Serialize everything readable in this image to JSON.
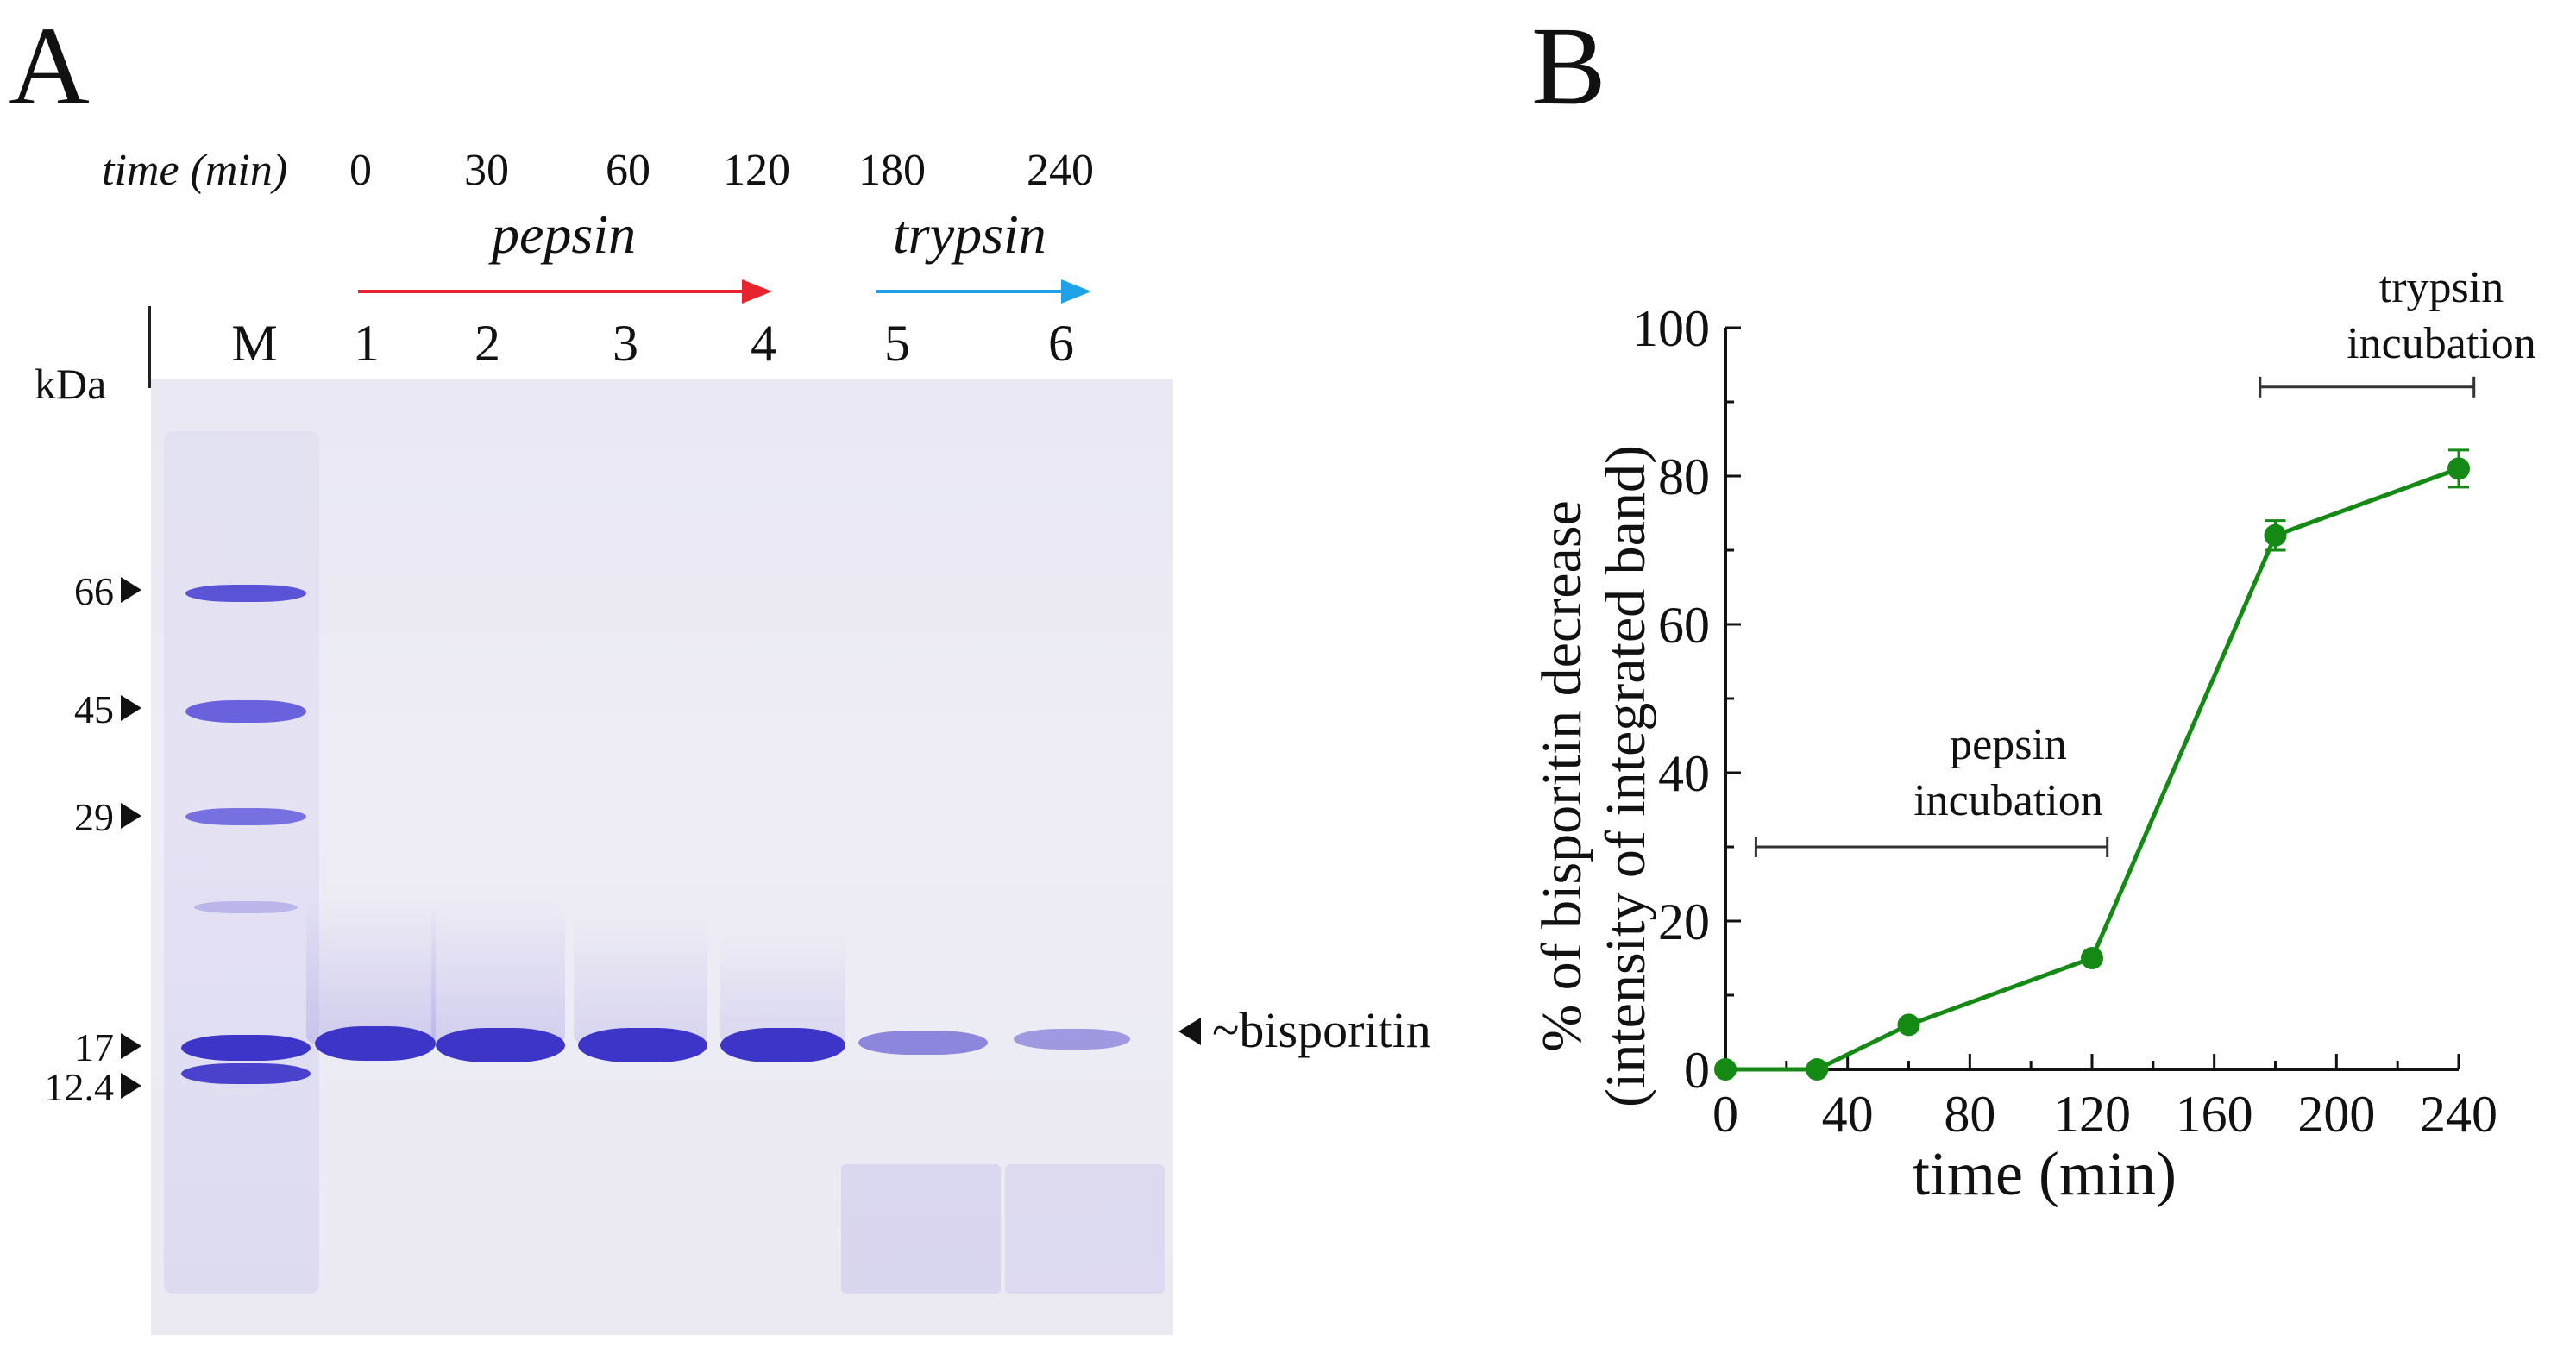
{
  "panelA": {
    "letter": "A",
    "time_label": "time (min)",
    "times": [
      "0",
      "30",
      "60",
      "120",
      "180",
      "240"
    ],
    "pepsin_label": "pepsin",
    "trypsin_label": "trypsin",
    "pepsin_arrow_color": "#e8232e",
    "trypsin_arrow_color": "#1ea1e8",
    "kda_label": "kDa",
    "marker_lane_label": "M",
    "lanes": [
      "1",
      "2",
      "3",
      "4",
      "5",
      "6"
    ],
    "markers": [
      "66",
      "45",
      "29",
      "17",
      "12.4"
    ],
    "band_label": "~bisporitin",
    "band_color": "#3d35c8",
    "lane_band_intensity": [
      0.95,
      0.95,
      0.95,
      0.95,
      0.45,
      0.35
    ]
  },
  "panelB": {
    "letter": "B",
    "pepsin_note": [
      "pepsin",
      "incubation"
    ],
    "trypsin_note": [
      "trypsin",
      "incubation"
    ]
  },
  "chart_data": {
    "type": "line",
    "xlabel": "time (min)",
    "ylabel_line1": "% of bisporitin decrease",
    "ylabel_line2": "(intensity of integrated band)",
    "xlim": [
      0,
      240
    ],
    "ylim": [
      0,
      100
    ],
    "x_ticks": [
      0,
      40,
      80,
      120,
      160,
      200,
      240
    ],
    "y_ticks": [
      0,
      20,
      40,
      60,
      80,
      100
    ],
    "color": "#148a14",
    "series": [
      {
        "x": [
          0,
          30,
          60,
          120,
          180,
          240
        ],
        "y": [
          0,
          0,
          6,
          15,
          72,
          81
        ],
        "error": [
          0,
          0,
          0,
          0,
          2,
          2.5
        ]
      }
    ],
    "annotations": [
      {
        "label": "pepsin incubation",
        "x_from": 10,
        "x_to": 125,
        "y": 30
      },
      {
        "label": "trypsin incubation",
        "x_from": 175,
        "x_to": 245,
        "y": 92
      }
    ]
  }
}
